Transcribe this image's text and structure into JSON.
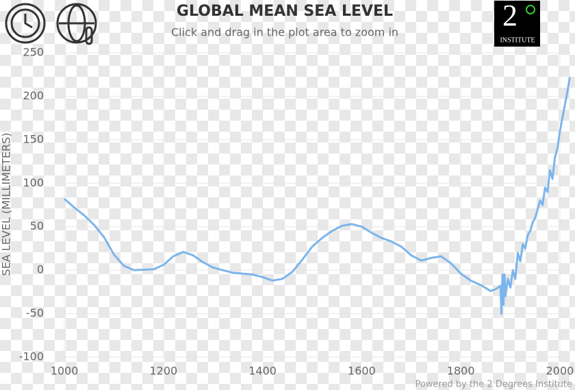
{
  "chart_data": {
    "type": "line",
    "title": "GLOBAL MEAN SEA LEVEL",
    "subtitle": "Click and drag in the plot area to zoom in",
    "y_label": "SEA LEVEL (MILLIMETERS)",
    "credit": "Powered by the 2 Degrees Institute",
    "logo_number": "2",
    "logo_text": "INSTITUTE",
    "color": "#7cb5ec",
    "grid": true,
    "xlim": [
      990,
      2022
    ],
    "ylim": [
      -100,
      250
    ],
    "xticks": [
      1000,
      1200,
      1400,
      1600,
      1800,
      2000
    ],
    "yticks": [
      -100,
      -50,
      0,
      50,
      100,
      150,
      200,
      250
    ],
    "x": [
      1000,
      1020,
      1040,
      1060,
      1080,
      1100,
      1120,
      1140,
      1160,
      1180,
      1200,
      1220,
      1240,
      1260,
      1280,
      1300,
      1320,
      1340,
      1360,
      1380,
      1400,
      1420,
      1440,
      1460,
      1480,
      1500,
      1520,
      1540,
      1560,
      1580,
      1600,
      1620,
      1640,
      1660,
      1680,
      1700,
      1720,
      1740,
      1760,
      1780,
      1800,
      1820,
      1840,
      1860,
      1870,
      1880,
      1882,
      1884,
      1886,
      1888,
      1890,
      1895,
      1900,
      1905,
      1910,
      1915,
      1920,
      1925,
      1930,
      1935,
      1940,
      1945,
      1950,
      1955,
      1960,
      1965,
      1970,
      1975,
      1980,
      1985,
      1990,
      1995,
      2000,
      2005,
      2010,
      2015,
      2020
    ],
    "values": [
      82,
      72,
      63,
      52,
      38,
      18,
      5,
      0,
      0.5,
      1,
      6,
      16,
      21,
      17,
      9,
      3,
      0,
      -3,
      -4,
      -5,
      -8,
      -12,
      -10,
      -2,
      12,
      27,
      37,
      45,
      51,
      53,
      50,
      43,
      37,
      33,
      27,
      17,
      11,
      14,
      16,
      8,
      -4,
      -12,
      -17,
      -24,
      -22,
      -18,
      -50,
      -5,
      -40,
      -5,
      -30,
      -10,
      -20,
      0,
      -10,
      20,
      10,
      30,
      25,
      40,
      45,
      55,
      60,
      70,
      80,
      75,
      95,
      90,
      115,
      105,
      130,
      140,
      160,
      175,
      190,
      205,
      222
    ]
  }
}
